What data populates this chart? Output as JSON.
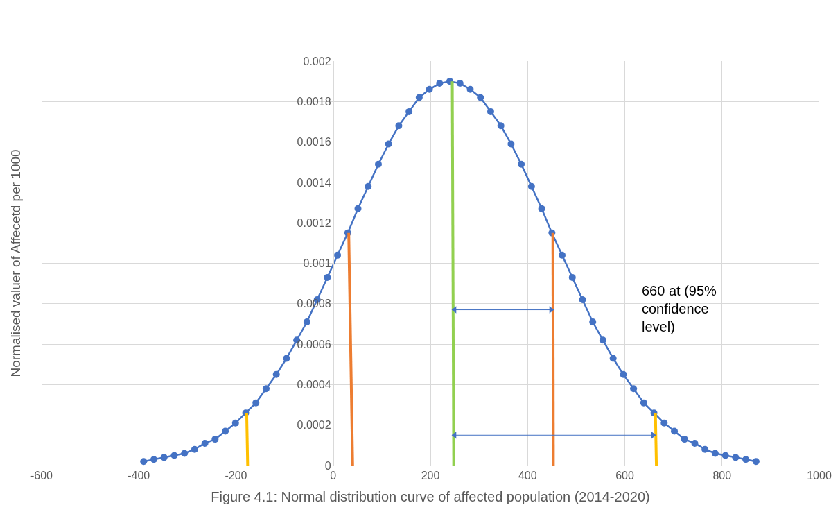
{
  "chart_data": {
    "type": "line",
    "xlabel": "Figure 4.1: Normal distribution curve of affected population (2014-2020)",
    "ylabel": "Normalised valuer of Affecetd per 1000",
    "xlim": [
      -600,
      1000
    ],
    "xticks": [
      -600,
      -400,
      -200,
      0,
      200,
      400,
      600,
      800,
      1000
    ],
    "ylim": [
      0,
      0.002
    ],
    "yticks": [
      0,
      0.0002,
      0.0004,
      0.0006,
      0.0008,
      0.001,
      0.0012,
      0.0014,
      0.0016,
      0.0018,
      0.002
    ],
    "grid": true,
    "series": [
      {
        "marker": "circle",
        "color": "#4472c4",
        "x": [
          -390,
          -369,
          -348,
          -327,
          -306,
          -285,
          -264,
          -243,
          -222,
          -201,
          -180,
          -159,
          -138,
          -117,
          -96,
          -75,
          -54,
          -33,
          -12,
          9,
          30,
          51,
          72,
          93,
          114,
          135,
          156,
          177,
          198,
          219,
          240,
          261,
          282,
          303,
          324,
          345,
          366,
          387,
          408,
          429,
          450,
          471,
          492,
          513,
          534,
          555,
          576,
          597,
          618,
          639,
          660,
          681,
          702,
          723,
          744,
          765,
          786,
          807,
          828,
          849,
          870
        ],
        "values": [
          2e-05,
          3e-05,
          4e-05,
          5e-05,
          6e-05,
          8e-05,
          0.00011,
          0.00013,
          0.00017,
          0.00021,
          0.00026,
          0.00031,
          0.00038,
          0.00045,
          0.00053,
          0.00062,
          0.00071,
          0.00082,
          0.00093,
          0.00104,
          0.00115,
          0.00127,
          0.00138,
          0.00149,
          0.00159,
          0.00168,
          0.00175,
          0.00182,
          0.00186,
          0.00189,
          0.0019,
          0.00189,
          0.00186,
          0.00182,
          0.00175,
          0.00168,
          0.00159,
          0.00149,
          0.00138,
          0.00127,
          0.00115,
          0.00104,
          0.00093,
          0.00082,
          0.00071,
          0.00062,
          0.00053,
          0.00045,
          0.00038,
          0.00031,
          0.00026,
          0.00021,
          0.00017,
          0.00013,
          0.00011,
          8e-05,
          6e-05,
          5e-05,
          4e-05,
          3e-05,
          2e-05
        ]
      },
      {
        "type": "line",
        "marker": "none",
        "color": "#92d050",
        "x": [
          245,
          248
        ],
        "values": [
          0.0019,
          0
        ]
      },
      {
        "type": "line",
        "marker": "none",
        "color": "#ed7d31",
        "x": [
          32,
          40
        ],
        "values": [
          0.00115,
          0
        ]
      },
      {
        "type": "line",
        "marker": "none",
        "color": "#ed7d31",
        "x": [
          452,
          453
        ],
        "values": [
          0.00115,
          0
        ]
      },
      {
        "type": "line",
        "marker": "none",
        "color": "#ffc000",
        "x": [
          -178,
          -176
        ],
        "values": [
          0.00026,
          0
        ]
      },
      {
        "type": "line",
        "marker": "none",
        "color": "#ffc000",
        "x": [
          663,
          665
        ],
        "values": [
          0.00026,
          0
        ]
      },
      {
        "type": "line",
        "marker": "triangle",
        "color": "#4472c4",
        "x": [
          250,
          448
        ],
        "values": [
          0.00077,
          0.00077
        ]
      },
      {
        "type": "line",
        "marker": "triangle",
        "color": "#4472c4",
        "x": [
          250,
          658
        ],
        "values": [
          0.00015,
          0.00015
        ]
      }
    ],
    "annotations": [
      "660 at (95%\nconfidence\nlevel)"
    ]
  }
}
